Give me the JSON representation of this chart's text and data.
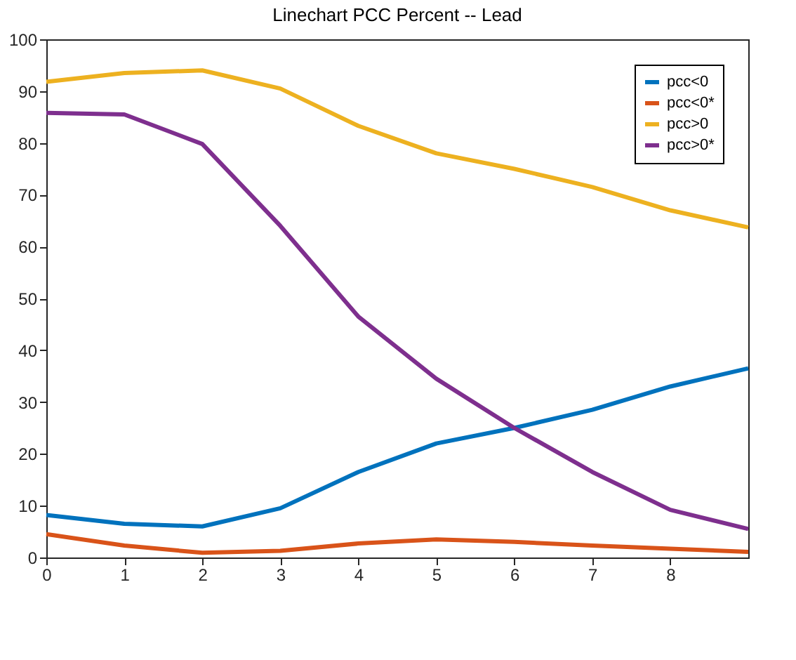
{
  "chart_data": {
    "type": "line",
    "title": "Linechart PCC Percent -- Lead",
    "x": [
      0,
      1,
      2,
      3,
      4,
      5,
      6,
      7,
      8,
      9
    ],
    "series": [
      {
        "name": "pcc<0",
        "color": "#0072bd",
        "values": [
          8.2,
          6.5,
          6.0,
          9.5,
          16.5,
          22,
          25,
          28.5,
          33,
          36.5
        ]
      },
      {
        "name": "pcc<0*",
        "color": "#d95319",
        "values": [
          4.5,
          2.3,
          0.9,
          1.3,
          2.7,
          3.5,
          3.0,
          2.3,
          1.7,
          1.1
        ]
      },
      {
        "name": "pcc>0",
        "color": "#edb120",
        "values": [
          91.8,
          93.5,
          94,
          90.5,
          83.3,
          78,
          75,
          71.5,
          67,
          63.7
        ]
      },
      {
        "name": "pcc>0*",
        "color": "#7e2f8e",
        "values": [
          85.8,
          85.5,
          79.8,
          64,
          46.5,
          34.5,
          25,
          16.5,
          9.2,
          5.5
        ]
      }
    ],
    "xlim": [
      0,
      9
    ],
    "xticks": [
      0,
      1,
      2,
      3,
      4,
      5,
      6,
      7,
      8
    ],
    "ylim": [
      0,
      100
    ],
    "yticks": [
      0,
      10,
      20,
      30,
      40,
      50,
      60,
      70,
      80,
      90,
      100
    ],
    "grid": false,
    "legend": "top right",
    "marker": "none",
    "line_style": "solid"
  }
}
